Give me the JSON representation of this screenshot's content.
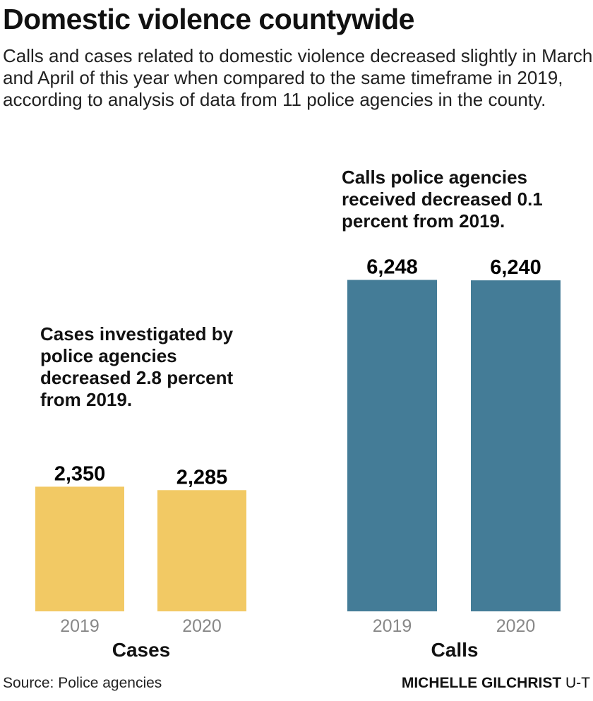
{
  "title": "Domestic violence countywide",
  "subtitle": "Calls and cases related to domestic violence decreased slightly in March and April of this year when compared to the same timeframe in 2019, according to analysis of data from 11 police agencies in the county.",
  "source": "Source: Police agencies",
  "credit_name": "MICHELLE GILCHRIST",
  "credit_org": "U-T",
  "chart_data": [
    {
      "type": "bar",
      "xlabel": "Cases",
      "categories": [
        "2019",
        "2020"
      ],
      "values": [
        2350,
        2285
      ],
      "value_labels": [
        "2,350",
        "2,285"
      ],
      "annotation": "Cases investigated by police agencies decreased 2.8 percent from 2019.",
      "color": "#F2C964",
      "ylim": [
        0,
        7000
      ],
      "grid": false
    },
    {
      "type": "bar",
      "xlabel": "Calls",
      "categories": [
        "2019",
        "2020"
      ],
      "values": [
        6248,
        6240
      ],
      "value_labels": [
        "6,248",
        "6,240"
      ],
      "annotation": "Calls police agencies received decreased 0.1 percent from 2019.",
      "color": "#447C97",
      "ylim": [
        0,
        7000
      ],
      "grid": false
    }
  ]
}
